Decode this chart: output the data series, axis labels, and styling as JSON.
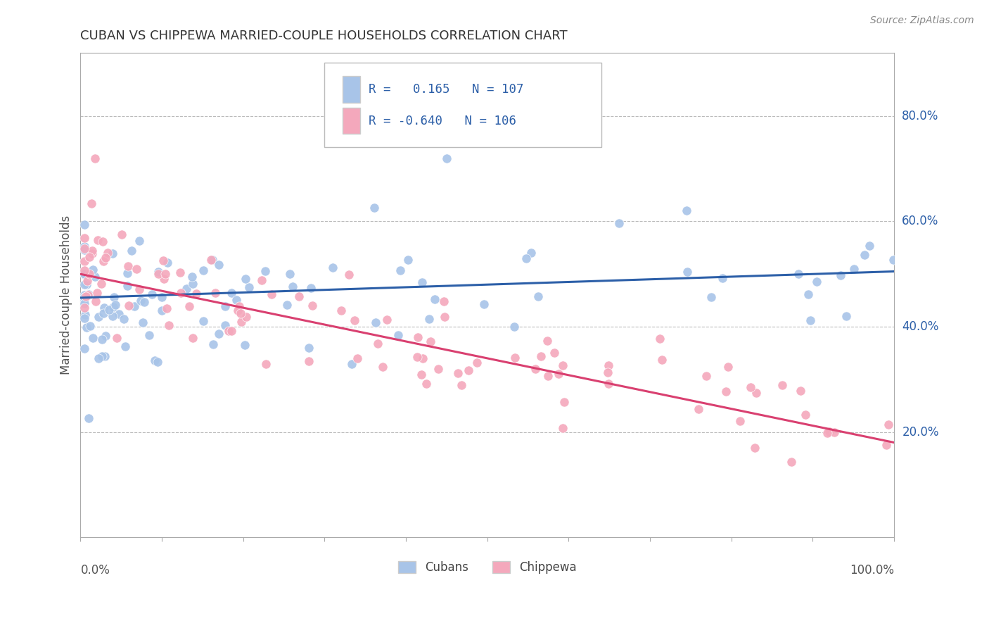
{
  "title": "CUBAN VS CHIPPEWA MARRIED-COUPLE HOUSEHOLDS CORRELATION CHART",
  "source": "Source: ZipAtlas.com",
  "ylabel": "Married-couple Households",
  "ytick_labels": [
    "20.0%",
    "40.0%",
    "60.0%",
    "80.0%"
  ],
  "ytick_values": [
    0.2,
    0.4,
    0.6,
    0.8
  ],
  "blue_color": "#a8c4e8",
  "pink_color": "#f4a8bc",
  "blue_line_color": "#2c5fa8",
  "pink_line_color": "#d94070",
  "legend_blue_color": "#a8c4e8",
  "legend_pink_color": "#f4a8bc",
  "legend_text_color": "#2c5fa8",
  "title_color": "#333333",
  "source_color": "#888888",
  "background_color": "#ffffff",
  "grid_color": "#bbbbbb",
  "axis_color": "#aaaaaa",
  "blue_r": "0.165",
  "blue_n": "107",
  "pink_r": "-0.640",
  "pink_n": "106",
  "blue_slope": 0.05,
  "blue_intercept": 0.455,
  "pink_slope": -0.32,
  "pink_intercept": 0.5
}
